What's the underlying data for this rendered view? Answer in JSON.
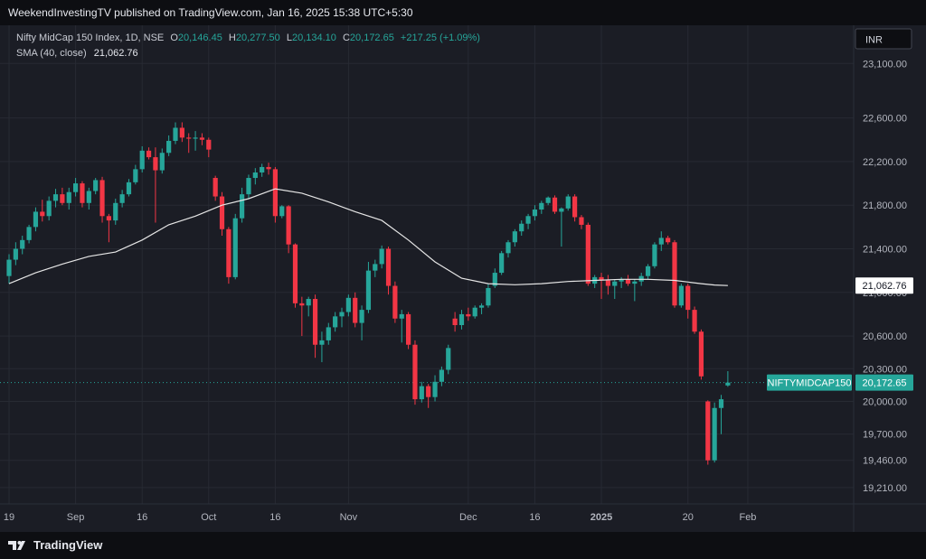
{
  "header": {
    "published_text": "WeekendInvestingTV published on TradingView.com, Jan 16, 2025 15:38 UTC+5:30"
  },
  "legend": {
    "symbol": "Nifty MidCap 150 Index, 1D, NSE",
    "open_label": "O",
    "open_value": "20,146.45",
    "high_label": "H",
    "high_value": "20,277.50",
    "low_label": "L",
    "low_value": "20,134.10",
    "close_label": "C",
    "close_value": "20,172.65",
    "change": "+217.25 (+1.09%)",
    "sma_label": "SMA (40, close)",
    "sma_value": "21,062.76"
  },
  "currency_button": "INR",
  "footer": {
    "brand": "TradingView"
  },
  "colors": {
    "up": "#26a69a",
    "down": "#f23645",
    "sma": "#e6e6e6",
    "background": "#1b1d25",
    "grid": "#272a33",
    "axis_text": "#b2b5be"
  },
  "chart_data": {
    "type": "candlestick",
    "y_axis": {
      "ticks": [
        19210,
        19460,
        19700,
        20000,
        20300,
        20600,
        21000,
        21400,
        21800,
        22200,
        22600,
        23100
      ],
      "tick_labels": [
        "19,210.00",
        "19,460.00",
        "19,700.00",
        "20,000.00",
        "20,300.00",
        "20,600.00",
        "21,000.00",
        "21,400.00",
        "21,800.00",
        "22,200.00",
        "22,600.00",
        "23,100.00"
      ],
      "ylim": [
        19060,
        23450
      ]
    },
    "x_axis": {
      "labels": [
        {
          "text": "19",
          "index": 0
        },
        {
          "text": "Sep",
          "index": 10
        },
        {
          "text": "16",
          "index": 20
        },
        {
          "text": "Oct",
          "index": 30
        },
        {
          "text": "16",
          "index": 40
        },
        {
          "text": "Nov",
          "index": 51
        },
        {
          "text": "Dec",
          "index": 69
        },
        {
          "text": "16",
          "index": 79
        },
        {
          "text": "2025",
          "index": 89
        },
        {
          "text": "20",
          "index": 102
        },
        {
          "text": "Feb",
          "index": 111
        }
      ]
    },
    "last_price": {
      "label": "NIFTYMIDCAP150",
      "value": "20,172.65",
      "y": 20172.65
    },
    "sma_marker": {
      "value": "21,062.76",
      "y": 21062.76
    },
    "candles": [
      [
        21150,
        21350,
        21080,
        21300
      ],
      [
        21300,
        21460,
        21250,
        21400
      ],
      [
        21400,
        21520,
        21350,
        21480
      ],
      [
        21480,
        21620,
        21450,
        21600
      ],
      [
        21600,
        21780,
        21560,
        21740
      ],
      [
        21740,
        21850,
        21650,
        21700
      ],
      [
        21700,
        21880,
        21660,
        21840
      ],
      [
        21840,
        21950,
        21780,
        21900
      ],
      [
        21900,
        21960,
        21800,
        21820
      ],
      [
        21820,
        21960,
        21760,
        21920
      ],
      [
        21920,
        22050,
        21880,
        22000
      ],
      [
        22000,
        22020,
        21780,
        21820
      ],
      [
        21820,
        21960,
        21760,
        21930
      ],
      [
        21930,
        22050,
        21900,
        22030
      ],
      [
        22030,
        22060,
        21640,
        21700
      ],
      [
        21700,
        21720,
        21460,
        21660
      ],
      [
        21660,
        21860,
        21620,
        21820
      ],
      [
        21820,
        21940,
        21780,
        21900
      ],
      [
        21900,
        22040,
        21880,
        22010
      ],
      [
        22010,
        22170,
        21990,
        22130
      ],
      [
        22130,
        22340,
        22100,
        22300
      ],
      [
        22300,
        22330,
        22220,
        22240
      ],
      [
        22240,
        22330,
        21640,
        22120
      ],
      [
        22120,
        22320,
        22090,
        22280
      ],
      [
        22280,
        22440,
        22250,
        22390
      ],
      [
        22390,
        22560,
        22360,
        22510
      ],
      [
        22510,
        22560,
        22380,
        22420
      ],
      [
        22420,
        22460,
        22280,
        22410
      ],
      [
        22410,
        22480,
        22300,
        22420
      ],
      [
        22420,
        22460,
        22350,
        22400
      ],
      [
        22400,
        22420,
        22240,
        22310
      ],
      [
        22050,
        22070,
        21840,
        21880
      ],
      [
        21880,
        21920,
        21520,
        21580
      ],
      [
        21580,
        21600,
        21080,
        21140
      ],
      [
        21140,
        21720,
        21120,
        21680
      ],
      [
        21680,
        21960,
        21640,
        21900
      ],
      [
        21900,
        22080,
        21860,
        22050
      ],
      [
        22050,
        22140,
        21990,
        22100
      ],
      [
        22100,
        22180,
        22060,
        22150
      ],
      [
        22150,
        22190,
        22080,
        22130
      ],
      [
        22130,
        22150,
        21640,
        21700
      ],
      [
        21700,
        21800,
        21680,
        21790
      ],
      [
        21790,
        21800,
        21360,
        21440
      ],
      [
        21440,
        21450,
        20860,
        20900
      ],
      [
        20900,
        20960,
        20600,
        20880
      ],
      [
        20880,
        20960,
        20780,
        20940
      ],
      [
        20940,
        20980,
        20400,
        20520
      ],
      [
        20520,
        20640,
        20360,
        20560
      ],
      [
        20560,
        20720,
        20520,
        20680
      ],
      [
        20680,
        20820,
        20640,
        20780
      ],
      [
        20780,
        20860,
        20680,
        20820
      ],
      [
        20820,
        20980,
        20780,
        20950
      ],
      [
        20950,
        21000,
        20680,
        20720
      ],
      [
        20720,
        20880,
        20560,
        20840
      ],
      [
        20840,
        21280,
        20810,
        21200
      ],
      [
        21200,
        21300,
        21140,
        21260
      ],
      [
        21260,
        21430,
        21220,
        21400
      ],
      [
        21400,
        21420,
        20980,
        21060
      ],
      [
        21060,
        21100,
        20720,
        20760
      ],
      [
        20760,
        20840,
        20540,
        20800
      ],
      [
        20800,
        20820,
        20480,
        20520
      ],
      [
        20520,
        20560,
        19970,
        20020
      ],
      [
        20020,
        20180,
        19990,
        20140
      ],
      [
        20140,
        20160,
        19940,
        20040
      ],
      [
        20040,
        20240,
        20000,
        20180
      ],
      [
        20180,
        20320,
        20140,
        20290
      ],
      [
        20290,
        20520,
        20250,
        20490
      ],
      [
        20760,
        20820,
        20640,
        20700
      ],
      [
        20700,
        20840,
        20660,
        20800
      ],
      [
        20800,
        20860,
        20740,
        20780
      ],
      [
        20780,
        20880,
        20760,
        20860
      ],
      [
        20860,
        20900,
        20800,
        20880
      ],
      [
        20880,
        21080,
        20860,
        21040
      ],
      [
        21060,
        21220,
        21040,
        21180
      ],
      [
        21180,
        21380,
        21160,
        21360
      ],
      [
        21360,
        21480,
        21320,
        21460
      ],
      [
        21460,
        21580,
        21420,
        21560
      ],
      [
        21560,
        21660,
        21520,
        21630
      ],
      [
        21630,
        21720,
        21580,
        21700
      ],
      [
        21700,
        21800,
        21660,
        21760
      ],
      [
        21760,
        21840,
        21720,
        21820
      ],
      [
        21820,
        21880,
        21800,
        21870
      ],
      [
        21870,
        21890,
        21720,
        21740
      ],
      [
        21740,
        21780,
        21420,
        21770
      ],
      [
        21770,
        21900,
        21750,
        21880
      ],
      [
        21880,
        21900,
        21650,
        21690
      ],
      [
        21690,
        21710,
        21580,
        21620
      ],
      [
        21620,
        21640,
        21060,
        21080
      ],
      [
        21080,
        21160,
        21040,
        21140
      ],
      [
        21140,
        21180,
        20940,
        21110
      ],
      [
        21110,
        21160,
        20980,
        21060
      ],
      [
        21060,
        21120,
        20940,
        21100
      ],
      [
        21100,
        21140,
        21040,
        21120
      ],
      [
        21120,
        21160,
        21060,
        21080
      ],
      [
        21080,
        21120,
        20920,
        21100
      ],
      [
        21100,
        21180,
        21060,
        21150
      ],
      [
        21150,
        21260,
        21120,
        21240
      ],
      [
        21240,
        21460,
        21220,
        21440
      ],
      [
        21440,
        21560,
        21380,
        21500
      ],
      [
        21500,
        21520,
        21440,
        21460
      ],
      [
        21460,
        21480,
        20860,
        20880
      ],
      [
        20880,
        21080,
        20860,
        21060
      ],
      [
        21060,
        21080,
        20760,
        20840
      ],
      [
        20840,
        20870,
        20620,
        20640
      ],
      [
        20640,
        20660,
        20200,
        20230
      ],
      [
        20000,
        20010,
        19420,
        19460
      ],
      [
        19460,
        19990,
        19440,
        19940
      ],
      [
        19940,
        20060,
        19700,
        20020
      ],
      [
        20146.45,
        20277.5,
        20134.1,
        20172.65
      ]
    ],
    "sma": [
      [
        0,
        21080
      ],
      [
        4,
        21180
      ],
      [
        8,
        21260
      ],
      [
        12,
        21330
      ],
      [
        16,
        21370
      ],
      [
        20,
        21480
      ],
      [
        24,
        21620
      ],
      [
        28,
        21700
      ],
      [
        32,
        21800
      ],
      [
        36,
        21860
      ],
      [
        40,
        21950
      ],
      [
        44,
        21910
      ],
      [
        48,
        21830
      ],
      [
        52,
        21740
      ],
      [
        56,
        21660
      ],
      [
        60,
        21480
      ],
      [
        64,
        21280
      ],
      [
        68,
        21130
      ],
      [
        72,
        21080
      ],
      [
        76,
        21070
      ],
      [
        80,
        21080
      ],
      [
        84,
        21100
      ],
      [
        88,
        21110
      ],
      [
        92,
        21120
      ],
      [
        96,
        21120
      ],
      [
        100,
        21110
      ],
      [
        104,
        21080
      ],
      [
        106,
        21068
      ],
      [
        108,
        21062.76
      ]
    ]
  }
}
